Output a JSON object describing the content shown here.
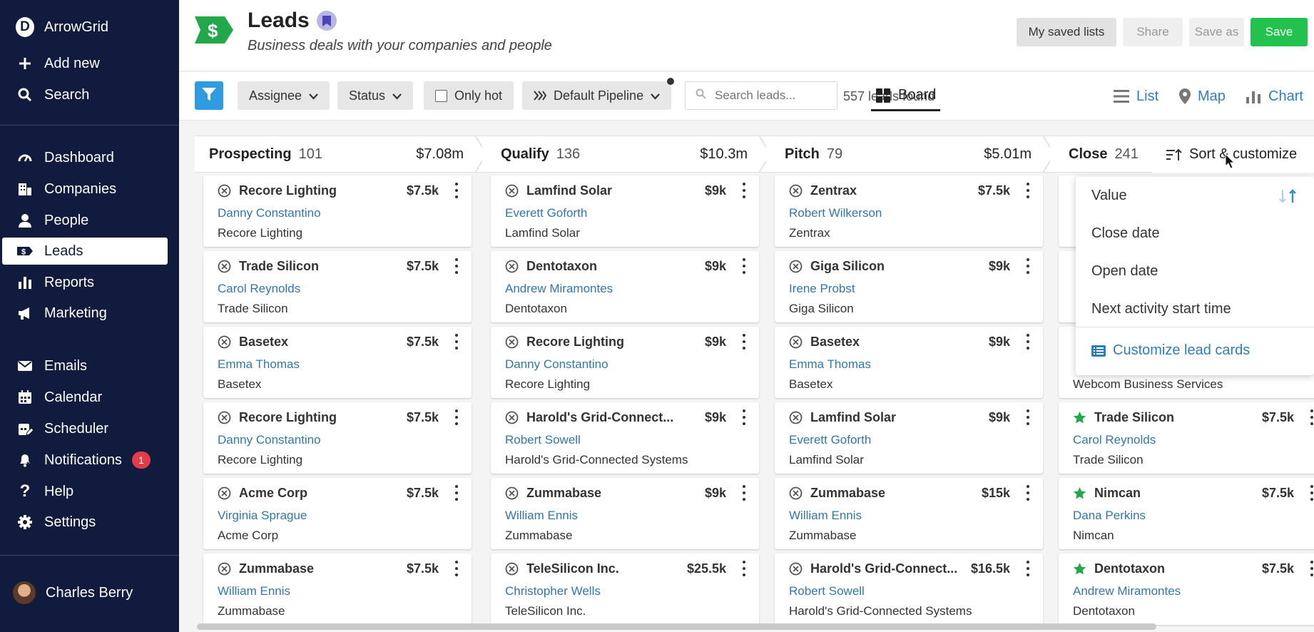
{
  "app": {
    "name": "ArrowGrid"
  },
  "sidebar": {
    "top_items": [
      {
        "label": "Add new",
        "icon": "plus-icon"
      },
      {
        "label": "Search",
        "icon": "search-icon"
      }
    ],
    "main_items": [
      {
        "label": "Dashboard",
        "icon": "gauge-icon"
      },
      {
        "label": "Companies",
        "icon": "building-icon"
      },
      {
        "label": "People",
        "icon": "person-icon"
      },
      {
        "label": "Leads",
        "icon": "dollar-tag-icon",
        "active": true
      },
      {
        "label": "Reports",
        "icon": "bar-chart-icon"
      },
      {
        "label": "Marketing",
        "icon": "megaphone-icon"
      }
    ],
    "tool_items": [
      {
        "label": "Emails",
        "icon": "envelope-icon"
      },
      {
        "label": "Calendar",
        "icon": "calendar-icon"
      },
      {
        "label": "Scheduler",
        "icon": "calendar-edit-icon"
      },
      {
        "label": "Notifications",
        "icon": "bell-icon",
        "badge": "1"
      },
      {
        "label": "Help",
        "icon": "question-icon"
      },
      {
        "label": "Settings",
        "icon": "gear-icon"
      }
    ],
    "user": {
      "name": "Charles Berry"
    }
  },
  "header": {
    "title": "Leads",
    "subtitle": "Business deals with your companies and people",
    "buttons": {
      "saved_lists": "My saved lists",
      "share": "Share",
      "save_as": "Save as",
      "save": "Save"
    }
  },
  "toolbar": {
    "assignee": "Assignee",
    "status": "Status",
    "only_hot": "Only hot",
    "pipeline": "Default Pipeline",
    "search_placeholder": "Search leads...",
    "count": "557 leads found",
    "views": [
      "Board",
      "List",
      "Map",
      "Chart"
    ],
    "active_view": "Board"
  },
  "colors": {
    "brand_green": "#22c24e",
    "accent_blue": "#2e7fb8",
    "sidebar": "#111b3d",
    "filter_blue": "#2f9be0"
  },
  "board": {
    "columns": [
      {
        "name": "Prospecting",
        "count": "101",
        "amount": "$7.08m",
        "cards": [
          {
            "title": "Recore Lighting",
            "value": "$7.5k",
            "contact": "Danny Constantino",
            "company": "Recore Lighting",
            "state": "lost"
          },
          {
            "title": "Trade Silicon",
            "value": "$7.5k",
            "contact": "Carol Reynolds",
            "company": "Trade Silicon",
            "state": "lost"
          },
          {
            "title": "Basetex",
            "value": "$7.5k",
            "contact": "Emma Thomas",
            "company": "Basetex",
            "state": "lost"
          },
          {
            "title": "Recore Lighting",
            "value": "$7.5k",
            "contact": "Danny Constantino",
            "company": "Recore Lighting",
            "state": "lost"
          },
          {
            "title": "Acme Corp",
            "value": "$7.5k",
            "contact": "Virginia Sprague",
            "company": "Acme Corp",
            "state": "lost"
          },
          {
            "title": "Zummabase",
            "value": "$7.5k",
            "contact": "William Ennis",
            "company": "Zummabase",
            "state": "lost"
          }
        ]
      },
      {
        "name": "Qualify",
        "count": "136",
        "amount": "$10.3m",
        "cards": [
          {
            "title": "Lamfind Solar",
            "value": "$9k",
            "contact": "Everett Goforth",
            "company": "Lamfind Solar",
            "state": "lost"
          },
          {
            "title": "Dentotaxon",
            "value": "$9k",
            "contact": "Andrew Miramontes",
            "company": "Dentotaxon",
            "state": "lost"
          },
          {
            "title": "Recore Lighting",
            "value": "$9k",
            "contact": "Danny Constantino",
            "company": "Recore Lighting",
            "state": "lost"
          },
          {
            "title": "Harold's Grid-Connect...",
            "value": "$9k",
            "contact": "Robert Sowell",
            "company": "Harold's Grid-Connected Systems",
            "state": "lost"
          },
          {
            "title": "Zummabase",
            "value": "$9k",
            "contact": "William Ennis",
            "company": "Zummabase",
            "state": "lost"
          },
          {
            "title": "TeleSilicon Inc.",
            "value": "$25.5k",
            "contact": "Christopher Wells",
            "company": "TeleSilicon Inc.",
            "state": "lost"
          }
        ]
      },
      {
        "name": "Pitch",
        "count": "79",
        "amount": "$5.01m",
        "cards": [
          {
            "title": "Zentrax",
            "value": "$7.5k",
            "contact": "Robert Wilkerson",
            "company": "Zentrax",
            "state": "lost"
          },
          {
            "title": "Giga Silicon",
            "value": "$9k",
            "contact": "Irene Probst",
            "company": "Giga Silicon",
            "state": "lost"
          },
          {
            "title": "Basetex",
            "value": "$9k",
            "contact": "Emma Thomas",
            "company": "Basetex",
            "state": "lost"
          },
          {
            "title": "Lamfind Solar",
            "value": "$9k",
            "contact": "Everett Goforth",
            "company": "Lamfind Solar",
            "state": "lost"
          },
          {
            "title": "Zummabase",
            "value": "$15k",
            "contact": "William Ennis",
            "company": "Zummabase",
            "state": "lost"
          },
          {
            "title": "Harold's Grid-Connect...",
            "value": "$16.5k",
            "contact": "Robert Sowell",
            "company": "Harold's Grid-Connected Systems",
            "state": "lost"
          }
        ]
      },
      {
        "name": "Close",
        "count": "241",
        "amount": "",
        "cards": [
          {
            "title": "",
            "value": "",
            "contact": "",
            "company": "",
            "state": "hidden"
          },
          {
            "title": "",
            "value": "",
            "contact": "",
            "company": "",
            "state": "hidden"
          },
          {
            "title": "",
            "value": "",
            "contact": "",
            "company": "Webcom Business Services",
            "state": "partial"
          },
          {
            "title": "Trade Silicon",
            "value": "$7.5k",
            "contact": "Carol Reynolds",
            "company": "Trade Silicon",
            "state": "hot"
          },
          {
            "title": "Nimcan",
            "value": "$7.5k",
            "contact": "Dana Perkins",
            "company": "Nimcan",
            "state": "hot"
          },
          {
            "title": "Dentotaxon",
            "value": "$7.5k",
            "contact": "Andrew Miramontes",
            "company": "Dentotaxon",
            "state": "hot"
          }
        ]
      }
    ]
  },
  "sort_menu": {
    "label": "Sort & customize",
    "options": [
      "Value",
      "Close date",
      "Open date",
      "Next activity start time"
    ],
    "selected": "Value",
    "customize": "Customize lead cards"
  }
}
